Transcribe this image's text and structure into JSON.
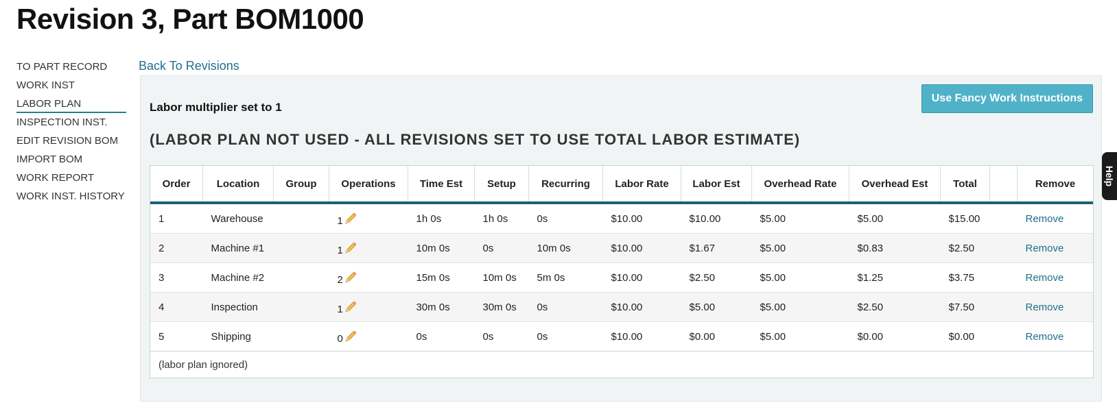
{
  "page": {
    "title": "Revision 3, Part BOM1000"
  },
  "sidebar": {
    "items": [
      {
        "label": "TO PART RECORD"
      },
      {
        "label": "WORK INST"
      },
      {
        "label": "LABOR PLAN"
      },
      {
        "label": "INSPECTION INST."
      },
      {
        "label": "EDIT REVISION BOM"
      },
      {
        "label": "IMPORT BOM"
      },
      {
        "label": "WORK REPORT"
      },
      {
        "label": "WORK INST. HISTORY"
      }
    ],
    "active": "LABOR PLAN"
  },
  "back_link": "Back To Revisions",
  "panel": {
    "fancy_button": "Use Fancy Work Instructions",
    "labor_multiplier": "Labor multiplier set to 1",
    "notice": "(LABOR PLAN NOT USED - ALL REVISIONS SET TO USE TOTAL LABOR ESTIMATE)"
  },
  "table": {
    "headers": [
      "Order",
      "Location",
      "Group",
      "Operations",
      "Time Est",
      "Setup",
      "Recurring",
      "Labor Rate",
      "Labor Est",
      "Overhead Rate",
      "Overhead Est",
      "Total",
      "",
      "Remove"
    ],
    "rows": [
      {
        "order": "1",
        "location": "Warehouse",
        "group": "",
        "operations": "1",
        "time_est": "1h 0s",
        "setup": "1h 0s",
        "recurring": "0s",
        "labor_rate": "$10.00",
        "labor_est": "$10.00",
        "overhead_rate": "$5.00",
        "overhead_est": "$5.00",
        "total": "$15.00",
        "remove": "Remove"
      },
      {
        "order": "2",
        "location": "Machine #1",
        "group": "",
        "operations": "1",
        "time_est": "10m 0s",
        "setup": "0s",
        "recurring": "10m 0s",
        "labor_rate": "$10.00",
        "labor_est": "$1.67",
        "overhead_rate": "$5.00",
        "overhead_est": "$0.83",
        "total": "$2.50",
        "remove": "Remove"
      },
      {
        "order": "3",
        "location": "Machine #2",
        "group": "",
        "operations": "2",
        "time_est": "15m 0s",
        "setup": "10m 0s",
        "recurring": "5m 0s",
        "labor_rate": "$10.00",
        "labor_est": "$2.50",
        "overhead_rate": "$5.00",
        "overhead_est": "$1.25",
        "total": "$3.75",
        "remove": "Remove"
      },
      {
        "order": "4",
        "location": "Inspection",
        "group": "",
        "operations": "1",
        "time_est": "30m 0s",
        "setup": "30m 0s",
        "recurring": "0s",
        "labor_rate": "$10.00",
        "labor_est": "$5.00",
        "overhead_rate": "$5.00",
        "overhead_est": "$2.50",
        "total": "$7.50",
        "remove": "Remove"
      },
      {
        "order": "5",
        "location": "Shipping",
        "group": "",
        "operations": "0",
        "time_est": "0s",
        "setup": "0s",
        "recurring": "0s",
        "labor_rate": "$10.00",
        "labor_est": "$0.00",
        "overhead_rate": "$5.00",
        "overhead_est": "$0.00",
        "total": "$0.00",
        "remove": "Remove"
      }
    ],
    "footer": "(labor plan ignored)"
  },
  "help_tab": "Help",
  "colors": {
    "accent": "#1f6f8b",
    "button": "#4fb2c9",
    "panel": "#f1f4f5",
    "header_rule": "#1e5f74"
  },
  "icons": {
    "edit": "pencil-icon"
  }
}
